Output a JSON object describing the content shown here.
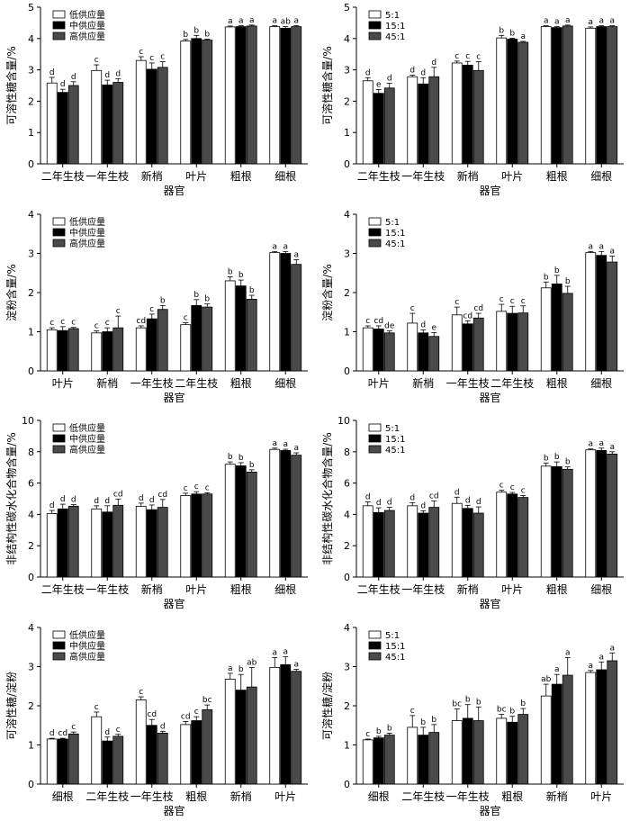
{
  "chart_data": [
    {
      "type": "bar",
      "ylabel": "可溶性糖含量/%",
      "xlabel": "器官",
      "ylim": [
        0,
        5
      ],
      "yticks": [
        0,
        1,
        2,
        3,
        4,
        5
      ],
      "legend": "top-left",
      "categories": [
        "二年生枝",
        "一年生枝",
        "新梢",
        "叶片",
        "粗根",
        "细根"
      ],
      "series": [
        {
          "name": "低供应量",
          "color": "#ffffff",
          "values": [
            2.58,
            2.98,
            3.3,
            3.92,
            4.37,
            4.38
          ],
          "errors": [
            0.18,
            0.18,
            0.12,
            0.05,
            0.03,
            0.03
          ],
          "labels": [
            "d",
            "c",
            "c",
            "b",
            "a",
            "a"
          ]
        },
        {
          "name": "中供应量",
          "color": "#000000",
          "values": [
            2.28,
            2.52,
            3.02,
            4.0,
            4.38,
            4.33
          ],
          "errors": [
            0.1,
            0.15,
            0.2,
            0.1,
            0.03,
            0.05
          ],
          "labels": [
            "d",
            "d",
            "c",
            "b",
            "a",
            "ab"
          ]
        },
        {
          "name": "高供应量",
          "color": "#4a4a4a",
          "values": [
            2.5,
            2.6,
            3.08,
            3.95,
            4.4,
            4.38
          ],
          "errors": [
            0.12,
            0.12,
            0.18,
            0.03,
            0.03,
            0.03
          ],
          "labels": [
            "d",
            "d",
            "c",
            "b",
            "a",
            "a"
          ]
        }
      ]
    },
    {
      "type": "bar",
      "ylabel": "可溶性糖含量/%",
      "xlabel": "器官",
      "ylim": [
        0,
        5
      ],
      "yticks": [
        0,
        1,
        2,
        3,
        4,
        5
      ],
      "legend": "top-left",
      "categories": [
        "二年生枝",
        "一年生枝",
        "新梢",
        "叶片",
        "粗根",
        "细根"
      ],
      "series": [
        {
          "name": "5:1",
          "color": "#ffffff",
          "values": [
            2.65,
            2.78,
            3.22,
            4.02,
            4.38,
            4.33
          ],
          "errors": [
            0.1,
            0.05,
            0.06,
            0.08,
            0.03,
            0.04
          ],
          "labels": [
            "d",
            "d",
            "c",
            "b",
            "a",
            "a"
          ]
        },
        {
          "name": "15:1",
          "color": "#000000",
          "values": [
            2.25,
            2.55,
            3.15,
            3.98,
            4.35,
            4.38
          ],
          "errors": [
            0.12,
            0.2,
            0.12,
            0.03,
            0.03,
            0.03
          ],
          "labels": [
            "e",
            "d",
            "c",
            "b",
            "a",
            "a"
          ]
        },
        {
          "name": "45:1",
          "color": "#4a4a4a",
          "values": [
            2.42,
            2.78,
            2.98,
            3.88,
            4.4,
            4.38
          ],
          "errors": [
            0.15,
            0.3,
            0.28,
            0.03,
            0.03,
            0.03
          ],
          "labels": [
            "d",
            "d",
            "c",
            "a",
            "a",
            "a"
          ]
        }
      ]
    },
    {
      "type": "bar",
      "ylabel": "淀粉含量/%",
      "xlabel": "器官",
      "ylim": [
        0,
        4
      ],
      "yticks": [
        0,
        1,
        2,
        3,
        4
      ],
      "legend": "top-left",
      "categories": [
        "叶片",
        "新梢",
        "一年生枝",
        "二年生枝",
        "粗根",
        "细根"
      ],
      "series": [
        {
          "name": "低供应量",
          "color": "#ffffff",
          "values": [
            1.05,
            0.97,
            1.1,
            1.18,
            2.3,
            3.02
          ],
          "errors": [
            0.05,
            0.05,
            0.05,
            0.05,
            0.1,
            0.03
          ],
          "labels": [
            "c",
            "c",
            "cd",
            "c",
            "b",
            "a"
          ]
        },
        {
          "name": "中供应量",
          "color": "#000000",
          "values": [
            1.03,
            1.0,
            1.33,
            1.67,
            2.17,
            3.0
          ],
          "errors": [
            0.1,
            0.1,
            0.12,
            0.15,
            0.15,
            0.05
          ],
          "labels": [
            "c",
            "c",
            "c",
            "b",
            "b",
            "a"
          ]
        },
        {
          "name": "高供应量",
          "color": "#4a4a4a",
          "values": [
            1.08,
            1.1,
            1.57,
            1.63,
            1.83,
            2.72
          ],
          "errors": [
            0.03,
            0.3,
            0.1,
            0.08,
            0.1,
            0.12
          ],
          "labels": [
            "c",
            "c",
            "b",
            "b",
            "b",
            "a"
          ]
        }
      ]
    },
    {
      "type": "bar",
      "ylabel": "淀粉含量/%",
      "xlabel": "器官",
      "ylim": [
        0,
        4
      ],
      "yticks": [
        0,
        1,
        2,
        3,
        4
      ],
      "legend": "top-left",
      "categories": [
        "叶片",
        "新梢",
        "一年生枝",
        "二年生枝",
        "粗根",
        "细根"
      ],
      "series": [
        {
          "name": "5:1",
          "color": "#ffffff",
          "values": [
            1.1,
            1.22,
            1.43,
            1.52,
            2.12,
            3.02
          ],
          "errors": [
            0.05,
            0.25,
            0.2,
            0.18,
            0.15,
            0.03
          ],
          "labels": [
            "c",
            "c",
            "c",
            "c",
            "b",
            "a"
          ]
        },
        {
          "name": "15:1",
          "color": "#000000",
          "values": [
            1.07,
            0.97,
            1.2,
            1.47,
            2.22,
            2.95
          ],
          "errors": [
            0.08,
            0.08,
            0.08,
            0.18,
            0.22,
            0.1
          ],
          "labels": [
            "cd",
            "d",
            "cd",
            "c",
            "b",
            "a"
          ]
        },
        {
          "name": "45:1",
          "color": "#4a4a4a",
          "values": [
            0.97,
            0.88,
            1.35,
            1.48,
            1.98,
            2.78
          ],
          "errors": [
            0.05,
            0.1,
            0.12,
            0.18,
            0.18,
            0.15
          ],
          "labels": [
            "de",
            "e",
            "cd",
            "c",
            "b",
            "a"
          ]
        }
      ]
    },
    {
      "type": "bar",
      "ylabel": "非结构性碳水化合物含量/%",
      "xlabel": "器官",
      "ylim": [
        0,
        10
      ],
      "yticks": [
        0,
        2,
        4,
        6,
        8,
        10
      ],
      "legend": "top-left",
      "categories": [
        "二年生枝",
        "一年生枝",
        "新梢",
        "叶片",
        "粗根",
        "细根"
      ],
      "series": [
        {
          "name": "低供应量",
          "color": "#ffffff",
          "values": [
            4.05,
            4.35,
            4.52,
            5.2,
            7.2,
            8.15
          ],
          "errors": [
            0.2,
            0.2,
            0.2,
            0.15,
            0.15,
            0.08
          ],
          "labels": [
            "d",
            "d",
            "d",
            "c",
            "b",
            "a"
          ]
        },
        {
          "name": "中供应量",
          "color": "#000000",
          "values": [
            4.35,
            4.15,
            4.3,
            5.3,
            7.1,
            8.08
          ],
          "errors": [
            0.3,
            0.4,
            0.3,
            0.15,
            0.2,
            0.08
          ],
          "labels": [
            "d",
            "d",
            "d",
            "c",
            "b",
            "a"
          ]
        },
        {
          "name": "高供应量",
          "color": "#4a4a4a",
          "values": [
            4.52,
            4.58,
            4.45,
            5.3,
            6.7,
            7.78
          ],
          "errors": [
            0.1,
            0.4,
            0.5,
            0.08,
            0.15,
            0.15
          ],
          "labels": [
            "d",
            "cd",
            "cd",
            "c",
            "b",
            "a"
          ]
        }
      ]
    },
    {
      "type": "bar",
      "ylabel": "非结构性碳水化合物含量/%",
      "xlabel": "器官",
      "ylim": [
        0,
        10
      ],
      "yticks": [
        0,
        2,
        4,
        6,
        8,
        10
      ],
      "legend": "top-left",
      "categories": [
        "二年生枝",
        "一年生枝",
        "新梢",
        "叶片",
        "粗根",
        "细根"
      ],
      "series": [
        {
          "name": "5:1",
          "color": "#ffffff",
          "values": [
            4.55,
            4.55,
            4.7,
            5.42,
            7.08,
            8.12
          ],
          "errors": [
            0.25,
            0.2,
            0.4,
            0.12,
            0.2,
            0.06
          ],
          "labels": [
            "d",
            "d",
            "d",
            "c",
            "b",
            "a"
          ]
        },
        {
          "name": "15:1",
          "color": "#000000",
          "values": [
            4.12,
            4.08,
            4.38,
            5.3,
            7.05,
            8.08
          ],
          "errors": [
            0.3,
            0.15,
            0.2,
            0.1,
            0.3,
            0.15
          ],
          "labels": [
            "d",
            "d",
            "d",
            "c",
            "b",
            "a"
          ]
        },
        {
          "name": "45:1",
          "color": "#4a4a4a",
          "values": [
            4.25,
            4.45,
            4.08,
            5.08,
            6.88,
            7.85
          ],
          "errors": [
            0.2,
            0.4,
            0.4,
            0.12,
            0.15,
            0.15
          ],
          "labels": [
            "d",
            "cd",
            "d",
            "c",
            "b",
            "a"
          ]
        }
      ]
    },
    {
      "type": "bar",
      "ylabel": "可溶性糖/淀粉",
      "xlabel": "器官",
      "ylim": [
        0,
        4
      ],
      "yticks": [
        0,
        1,
        2,
        3,
        4
      ],
      "legend": "top-left",
      "categories": [
        "细根",
        "二年生枝",
        "一年生枝",
        "粗根",
        "新梢",
        "叶片"
      ],
      "series": [
        {
          "name": "低供应量",
          "color": "#ffffff",
          "values": [
            1.15,
            1.72,
            2.15,
            1.52,
            2.68,
            2.98
          ],
          "errors": [
            0.02,
            0.12,
            0.08,
            0.08,
            0.15,
            0.25
          ],
          "labels": [
            "d",
            "c",
            "c",
            "cd",
            "a",
            "a"
          ]
        },
        {
          "name": "中供应量",
          "color": "#000000",
          "values": [
            1.15,
            1.1,
            1.5,
            1.62,
            2.4,
            3.05
          ],
          "errors": [
            0.02,
            0.1,
            0.15,
            0.1,
            0.4,
            0.2
          ],
          "labels": [
            "cd",
            "d",
            "cd",
            "c",
            "b",
            "a"
          ]
        },
        {
          "name": "高供应量",
          "color": "#4a4a4a",
          "values": [
            1.28,
            1.22,
            1.3,
            1.9,
            2.48,
            2.88
          ],
          "errors": [
            0.05,
            0.05,
            0.05,
            0.12,
            0.5,
            0.05
          ],
          "labels": [
            "c",
            "c",
            "d",
            "bc",
            "ab",
            "a"
          ]
        }
      ]
    },
    {
      "type": "bar",
      "ylabel": "可溶性糖/淀粉",
      "xlabel": "器官",
      "ylim": [
        0,
        4
      ],
      "yticks": [
        0,
        1,
        2,
        3,
        4
      ],
      "legend": "top-left",
      "categories": [
        "细根",
        "二年生枝",
        "一年生枝",
        "粗根",
        "新梢",
        "叶片"
      ],
      "series": [
        {
          "name": "5:1",
          "color": "#ffffff",
          "values": [
            1.13,
            1.45,
            1.62,
            1.68,
            2.25,
            2.85
          ],
          "errors": [
            0.02,
            0.3,
            0.3,
            0.1,
            0.3,
            0.05
          ],
          "labels": [
            "c",
            "c",
            "bc",
            "bc",
            "ab",
            "a"
          ]
        },
        {
          "name": "15:1",
          "color": "#000000",
          "values": [
            1.18,
            1.25,
            1.68,
            1.58,
            2.55,
            2.92
          ],
          "errors": [
            0.04,
            0.2,
            0.35,
            0.15,
            0.25,
            0.2
          ],
          "labels": [
            "b",
            "b",
            "b",
            "b",
            "a",
            "a"
          ]
        },
        {
          "name": "45:1",
          "color": "#4a4a4a",
          "values": [
            1.25,
            1.32,
            1.62,
            1.78,
            2.78,
            3.15
          ],
          "errors": [
            0.05,
            0.2,
            0.35,
            0.15,
            0.45,
            0.2
          ],
          "labels": [
            "b",
            "b",
            "b",
            "b",
            "a",
            "a"
          ]
        }
      ]
    }
  ]
}
